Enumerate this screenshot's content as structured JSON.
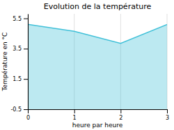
{
  "chart_data": {
    "type": "area",
    "title": "Evolution de la température",
    "xlabel": "heure par heure",
    "ylabel": "Température en °C",
    "x": [
      0,
      1,
      2,
      3
    ],
    "values": [
      5.1,
      4.65,
      3.85,
      5.1
    ],
    "color": "#40c0d8",
    "xlim": [
      0,
      3
    ],
    "ylim": [
      -0.5,
      5.8
    ],
    "xticks": [
      0,
      1,
      2,
      3
    ],
    "yticks": [
      -0.5,
      1.5,
      3.5,
      5.5
    ],
    "grid": "x"
  }
}
